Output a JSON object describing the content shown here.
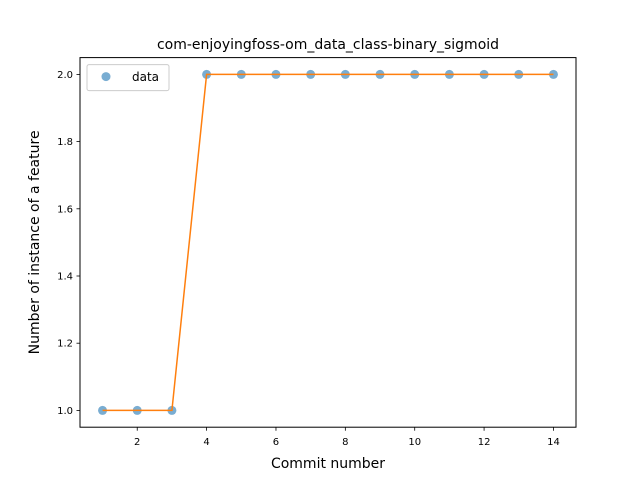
{
  "chart_data": {
    "type": "scatter",
    "title": "com-enjoyingfoss-om_data_class-binary_sigmoid",
    "xlabel": "Commit number",
    "ylabel": "Number of instance of a feature",
    "xlim": [
      0.35,
      14.65
    ],
    "ylim": [
      0.95,
      2.05
    ],
    "x_ticks": [
      2,
      4,
      6,
      8,
      10,
      12,
      14
    ],
    "y_ticks": [
      1.0,
      1.2,
      1.4,
      1.6,
      1.8,
      2.0
    ],
    "x_tick_labels": [
      "2",
      "4",
      "6",
      "8",
      "10",
      "12",
      "14"
    ],
    "y_tick_labels": [
      "1.0",
      "1.2",
      "1.4",
      "1.6",
      "1.8",
      "2.0"
    ],
    "grid": false,
    "legend_position": "top-left",
    "series": [
      {
        "name": "data",
        "kind": "scatter",
        "color": "#1f77b4",
        "x": [
          1,
          2,
          3,
          4,
          5,
          6,
          7,
          8,
          9,
          10,
          11,
          12,
          13,
          14
        ],
        "y": [
          1,
          1,
          1,
          2,
          2,
          2,
          2,
          2,
          2,
          2,
          2,
          2,
          2,
          2
        ]
      },
      {
        "kind": "line",
        "color": "#ff7f0e",
        "x": [
          1,
          2,
          3,
          4,
          5,
          6,
          7,
          8,
          9,
          10,
          11,
          12,
          13,
          14
        ],
        "y": [
          1,
          1,
          1,
          2,
          2,
          2,
          2,
          2,
          2,
          2,
          2,
          2,
          2,
          2
        ]
      }
    ]
  }
}
